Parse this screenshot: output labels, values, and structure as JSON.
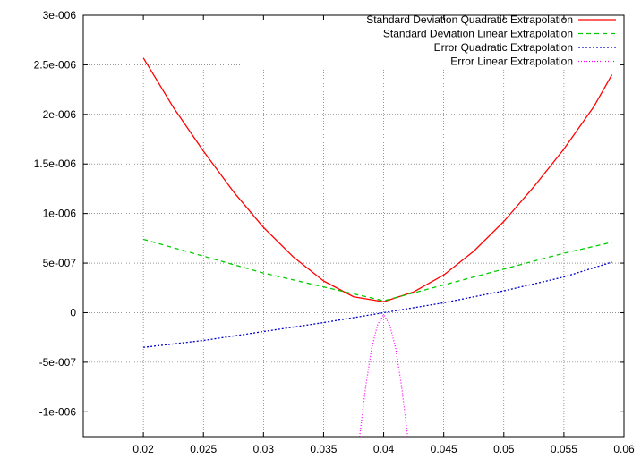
{
  "chart_data": {
    "type": "line",
    "title": "",
    "xlabel": "",
    "ylabel": "",
    "xlim": [
      0.015,
      0.06
    ],
    "ylim": [
      -1.25e-06,
      3e-06
    ],
    "grid": true,
    "legend_position": "top-right",
    "x_ticks": [
      0.02,
      0.025,
      0.03,
      0.035,
      0.04,
      0.045,
      0.05,
      0.055,
      0.06
    ],
    "x_tick_labels": [
      "0.02",
      "0.025",
      "0.03",
      "0.035",
      "0.04",
      "0.045",
      "0.05",
      "0.055",
      "0.06"
    ],
    "y_ticks": [
      -1e-06,
      -5e-07,
      0,
      5e-07,
      1e-06,
      1.5e-06,
      2e-06,
      2.5e-06,
      3e-06
    ],
    "y_tick_labels": [
      "-1e-006",
      "-5e-007",
      "0",
      "5e-007",
      "1e-006",
      "1.5e-006",
      "2e-006",
      "2.5e-006",
      "3e-006"
    ],
    "series": [
      {
        "name": "Standard Deviation Quadratic Extrapolation",
        "color": "#ff0000",
        "dash": "solid",
        "x": [
          0.02,
          0.0225,
          0.025,
          0.0275,
          0.03,
          0.0325,
          0.035,
          0.0375,
          0.04,
          0.0425,
          0.045,
          0.0475,
          0.05,
          0.0525,
          0.055,
          0.0575,
          0.059
        ],
        "y": [
          2.57e-06,
          2.07e-06,
          1.63e-06,
          1.22e-06,
          8.6e-07,
          5.6e-07,
          3.2e-07,
          1.6e-07,
          1.1e-07,
          2.1e-07,
          3.8e-07,
          6.2e-07,
          9.2e-07,
          1.27e-06,
          1.65e-06,
          2.08e-06,
          2.4e-06
        ]
      },
      {
        "name": "Standard Deviation Linear Extrapolation",
        "color": "#00cc00",
        "dash": "5,4",
        "x": [
          0.02,
          0.025,
          0.03,
          0.035,
          0.04,
          0.045,
          0.05,
          0.055,
          0.059
        ],
        "y": [
          7.4e-07,
          5.7e-07,
          4e-07,
          2.6e-07,
          1.2e-07,
          2.8e-07,
          4.4e-07,
          6e-07,
          7.1e-07
        ]
      },
      {
        "name": "Error Quadratic Extrapolation",
        "color": "#0000cc",
        "dash": "2,2",
        "x": [
          0.02,
          0.025,
          0.03,
          0.035,
          0.04,
          0.045,
          0.05,
          0.055,
          0.059
        ],
        "y": [
          -3.5e-07,
          -2.8e-07,
          -1.9e-07,
          -1e-07,
          0,
          1e-07,
          2.2e-07,
          3.6e-07,
          5.1e-07
        ]
      },
      {
        "name": "Error Linear Extrapolation",
        "color": "#ff00ff",
        "dash": "1,2",
        "x": [
          0.038,
          0.0385,
          0.039,
          0.0395,
          0.04,
          0.0405,
          0.041,
          0.0415,
          0.042
        ],
        "y": [
          -1.25e-06,
          -7.5e-07,
          -3.6e-07,
          -1.2e-07,
          -2e-08,
          -1.2e-07,
          -3.6e-07,
          -7.5e-07,
          -1.25e-06
        ]
      }
    ]
  }
}
